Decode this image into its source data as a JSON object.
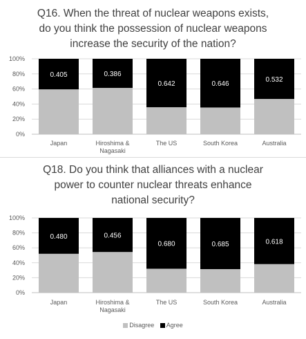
{
  "chart_data": [
    {
      "type": "bar",
      "stacked": true,
      "title_lines": [
        "Q16. When the threat of nuclear weapons exists,",
        "do you think the possession of nuclear weapons",
        "increase the security of the nation?"
      ],
      "categories": [
        [
          "Japan"
        ],
        [
          "Hiroshima &",
          "Nagasaki"
        ],
        [
          "The US"
        ],
        [
          "South Korea"
        ],
        [
          "Australia"
        ]
      ],
      "series": [
        {
          "name": "Disagree",
          "color": "#c0c0c0",
          "values": [
            0.595,
            0.614,
            0.358,
            0.354,
            0.468
          ]
        },
        {
          "name": "Agree",
          "color": "#000000",
          "values": [
            0.405,
            0.386,
            0.642,
            0.646,
            0.532
          ]
        }
      ],
      "data_labels": [
        "0.405",
        "0.386",
        "0.642",
        "0.646",
        "0.532"
      ],
      "yticks": [
        "0%",
        "20%",
        "40%",
        "60%",
        "80%",
        "100%"
      ],
      "ylim": [
        0,
        1
      ],
      "grid": true,
      "legend": "none"
    },
    {
      "type": "bar",
      "stacked": true,
      "title_lines": [
        "Q18. Do you think that alliances with a nuclear",
        "power to counter nuclear threats enhance",
        "national security?"
      ],
      "categories": [
        [
          "Japan"
        ],
        [
          "Hiroshima &",
          "Nagasaki"
        ],
        [
          "The US"
        ],
        [
          "South Korea"
        ],
        [
          "Australia"
        ]
      ],
      "series": [
        {
          "name": "Disagree",
          "color": "#c0c0c0",
          "values": [
            0.52,
            0.544,
            0.32,
            0.315,
            0.382
          ]
        },
        {
          "name": "Agree",
          "color": "#000000",
          "values": [
            0.48,
            0.456,
            0.68,
            0.685,
            0.618
          ]
        }
      ],
      "data_labels": [
        "0.480",
        "0.456",
        "0.680",
        "0.685",
        "0.618"
      ],
      "yticks": [
        "0%",
        "20%",
        "40%",
        "60%",
        "80%",
        "100%"
      ],
      "ylim": [
        0,
        1
      ],
      "grid": true,
      "legend": "bottom"
    }
  ],
  "legend": {
    "items": [
      {
        "name": "Disagree",
        "color": "#c0c0c0"
      },
      {
        "name": "Agree",
        "color": "#000000"
      }
    ]
  }
}
